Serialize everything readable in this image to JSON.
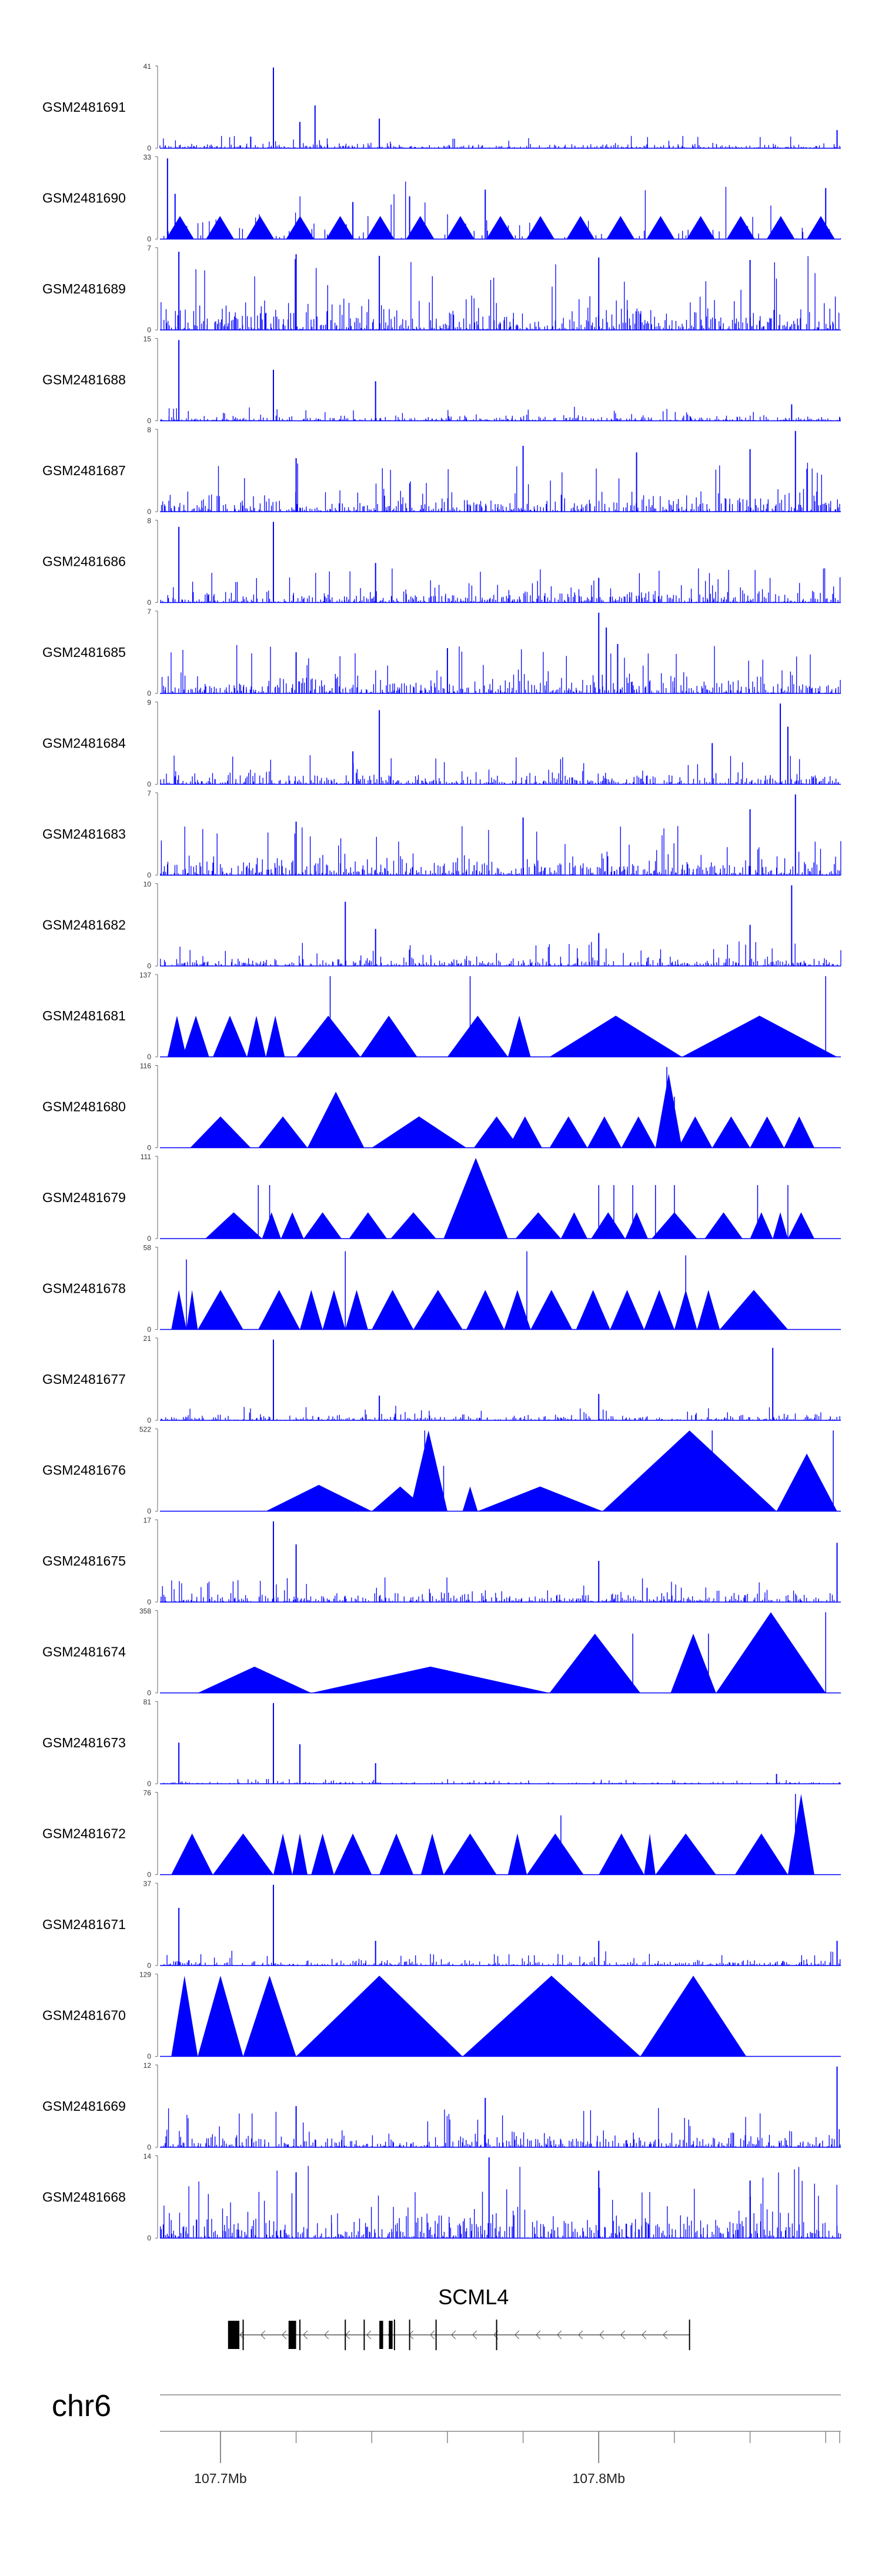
{
  "colors": {
    "signal": "#0000ff",
    "axis": "#666666",
    "gene": "#000000",
    "text": "#000000"
  },
  "chart_data": {
    "type": "area",
    "title": "",
    "xlabel": "chr6",
    "chromosome": "chr6",
    "xlim": [
      107.684,
      107.864
    ],
    "x_ticks": [
      {
        "value": 107.7,
        "label": "107.7Mb"
      },
      {
        "value": 107.8,
        "label": "107.8Mb"
      }
    ],
    "x_minor_ticks": [
      107.72,
      107.74,
      107.76,
      107.78,
      107.82,
      107.84,
      107.86
    ],
    "series": [
      {
        "name": "GSM2481691",
        "ymax": 41,
        "ymin": 0,
        "style": "dense",
        "seed": 91,
        "base": 0.05,
        "peaks": [
          [
            107.714,
            0.98
          ],
          [
            107.725,
            0.52
          ],
          [
            107.721,
            0.32
          ],
          [
            107.742,
            0.36
          ],
          [
            107.708,
            0.14
          ],
          [
            107.863,
            0.22
          ]
        ]
      },
      {
        "name": "GSM2481690",
        "ymax": 33,
        "ymin": 0,
        "style": "hybrid",
        "seed": 90,
        "base": 0.28,
        "tri_count": 17,
        "peaks": [
          [
            107.686,
            0.98
          ],
          [
            107.688,
            0.55
          ],
          [
            107.735,
            0.45
          ],
          [
            107.75,
            0.52
          ],
          [
            107.77,
            0.6
          ],
          [
            107.86,
            0.62
          ]
        ]
      },
      {
        "name": "GSM2481689",
        "ymax": 7,
        "ymin": 0,
        "style": "dense",
        "seed": 89,
        "base": 0.3,
        "peaks": [
          [
            107.689,
            0.95
          ],
          [
            107.72,
            0.92
          ],
          [
            107.742,
            0.9
          ],
          [
            107.8,
            0.88
          ],
          [
            107.84,
            0.85
          ]
        ]
      },
      {
        "name": "GSM2481688",
        "ymax": 15,
        "ymin": 0,
        "style": "dense",
        "seed": 88,
        "base": 0.06,
        "peaks": [
          [
            107.689,
            0.98
          ],
          [
            107.714,
            0.62
          ],
          [
            107.741,
            0.48
          ],
          [
            107.851,
            0.2
          ]
        ]
      },
      {
        "name": "GSM2481687",
        "ymax": 8,
        "ymin": 0,
        "style": "dense",
        "seed": 87,
        "base": 0.2,
        "peaks": [
          [
            107.852,
            0.98
          ],
          [
            107.78,
            0.8
          ],
          [
            107.81,
            0.72
          ],
          [
            107.84,
            0.76
          ],
          [
            107.72,
            0.65
          ]
        ]
      },
      {
        "name": "GSM2481686",
        "ymax": 8,
        "ymin": 0,
        "style": "dense",
        "seed": 86,
        "base": 0.14,
        "peaks": [
          [
            107.689,
            0.92
          ],
          [
            107.714,
            0.98
          ],
          [
            107.741,
            0.48
          ],
          [
            107.8,
            0.3
          ]
        ]
      },
      {
        "name": "GSM2481685",
        "ymax": 7,
        "ymin": 0,
        "style": "dense",
        "seed": 85,
        "base": 0.2,
        "peaks": [
          [
            107.8,
            0.98
          ],
          [
            107.802,
            0.8
          ],
          [
            107.805,
            0.6
          ],
          [
            107.76,
            0.55
          ],
          [
            107.72,
            0.5
          ]
        ]
      },
      {
        "name": "GSM2481684",
        "ymax": 9,
        "ymin": 0,
        "style": "dense",
        "seed": 84,
        "base": 0.12,
        "peaks": [
          [
            107.742,
            0.9
          ],
          [
            107.848,
            0.98
          ],
          [
            107.85,
            0.7
          ],
          [
            107.735,
            0.4
          ],
          [
            107.83,
            0.5
          ]
        ]
      },
      {
        "name": "GSM2481683",
        "ymax": 7,
        "ymin": 0,
        "style": "dense",
        "seed": 83,
        "base": 0.2,
        "peaks": [
          [
            107.852,
            0.98
          ],
          [
            107.84,
            0.8
          ],
          [
            107.78,
            0.7
          ],
          [
            107.72,
            0.65
          ]
        ]
      },
      {
        "name": "GSM2481682",
        "ymax": 10,
        "ymin": 0,
        "style": "dense",
        "seed": 82,
        "base": 0.1,
        "peaks": [
          [
            107.851,
            0.98
          ],
          [
            107.733,
            0.78
          ],
          [
            107.741,
            0.45
          ],
          [
            107.8,
            0.4
          ],
          [
            107.84,
            0.5
          ]
        ]
      },
      {
        "name": "GSM2481681",
        "ymax": 137,
        "ymin": 0,
        "style": "tri",
        "spikes": [
          [
            107.729,
            0.98
          ],
          [
            107.766,
            0.98
          ],
          [
            107.86,
            0.98
          ]
        ],
        "tris": [
          [
            107.686,
            107.691,
            0.5
          ],
          [
            107.69,
            107.697,
            0.5
          ],
          [
            107.698,
            107.707,
            0.5
          ],
          [
            107.707,
            107.712,
            0.5
          ],
          [
            107.712,
            107.717,
            0.5
          ],
          [
            107.72,
            107.737,
            0.5
          ],
          [
            107.737,
            107.752,
            0.5
          ],
          [
            107.76,
            107.776,
            0.5
          ],
          [
            107.776,
            107.782,
            0.5
          ],
          [
            107.787,
            107.822,
            0.5
          ],
          [
            107.822,
            107.863,
            0.5
          ]
        ]
      },
      {
        "name": "GSM2481680",
        "ymax": 116,
        "ymin": 0,
        "style": "tri",
        "spikes": [
          [
            107.818,
            0.98
          ],
          [
            107.82,
            0.62
          ]
        ],
        "tris": [
          [
            107.692,
            107.708,
            0.38
          ],
          [
            107.71,
            107.723,
            0.38
          ],
          [
            107.723,
            107.738,
            0.68
          ],
          [
            107.74,
            107.765,
            0.38
          ],
          [
            107.767,
            107.779,
            0.38
          ],
          [
            107.776,
            107.785,
            0.38
          ],
          [
            107.787,
            107.797,
            0.38
          ],
          [
            107.797,
            107.806,
            0.38
          ],
          [
            107.806,
            107.815,
            0.38
          ],
          [
            107.815,
            107.822,
            0.9
          ],
          [
            107.821,
            107.83,
            0.38
          ],
          [
            107.83,
            107.84,
            0.38
          ],
          [
            107.84,
            107.849,
            0.38
          ],
          [
            107.849,
            107.857,
            0.38
          ]
        ]
      },
      {
        "name": "GSM2481679",
        "ymax": 111,
        "ymin": 0,
        "style": "tri",
        "spikes": [
          [
            107.71,
            0.65
          ],
          [
            107.713,
            0.65
          ],
          [
            107.8,
            0.65
          ],
          [
            107.804,
            0.65
          ],
          [
            107.809,
            0.65
          ],
          [
            107.815,
            0.65
          ],
          [
            107.82,
            0.65
          ],
          [
            107.842,
            0.65
          ],
          [
            107.85,
            0.65
          ]
        ],
        "tris": [
          [
            107.696,
            107.711,
            0.32
          ],
          [
            107.711,
            107.716,
            0.32
          ],
          [
            107.716,
            107.722,
            0.32
          ],
          [
            107.722,
            107.732,
            0.32
          ],
          [
            107.734,
            107.744,
            0.32
          ],
          [
            107.745,
            107.757,
            0.32
          ],
          [
            107.759,
            107.776,
            0.98
          ],
          [
            107.778,
            107.79,
            0.32
          ],
          [
            107.79,
            107.797,
            0.32
          ],
          [
            107.798,
            107.807,
            0.32
          ],
          [
            107.807,
            107.813,
            0.32
          ],
          [
            107.814,
            107.826,
            0.32
          ],
          [
            107.828,
            107.838,
            0.32
          ],
          [
            107.84,
            107.846,
            0.32
          ],
          [
            107.846,
            107.85,
            0.32
          ],
          [
            107.85,
            107.857,
            0.32
          ]
        ]
      },
      {
        "name": "GSM2481678",
        "ymax": 58,
        "ymin": 0,
        "style": "tri",
        "spikes": [
          [
            107.691,
            0.85
          ],
          [
            107.733,
            0.95
          ],
          [
            107.781,
            0.95
          ],
          [
            107.823,
            0.9
          ]
        ],
        "tris": [
          [
            107.687,
            107.691,
            0.48
          ],
          [
            107.691,
            107.694,
            0.48
          ],
          [
            107.694,
            107.706,
            0.48
          ],
          [
            107.71,
            107.721,
            0.48
          ],
          [
            107.721,
            107.727,
            0.48
          ],
          [
            107.727,
            107.733,
            0.48
          ],
          [
            107.733,
            107.739,
            0.48
          ],
          [
            107.74,
            107.751,
            0.48
          ],
          [
            107.751,
            107.764,
            0.48
          ],
          [
            107.765,
            107.775,
            0.48
          ],
          [
            107.775,
            107.782,
            0.48
          ],
          [
            107.782,
            107.793,
            0.48
          ],
          [
            107.794,
            107.803,
            0.48
          ],
          [
            107.803,
            107.812,
            0.48
          ],
          [
            107.812,
            107.82,
            0.48
          ],
          [
            107.82,
            107.826,
            0.48
          ],
          [
            107.826,
            107.832,
            0.48
          ],
          [
            107.832,
            107.85,
            0.48
          ]
        ]
      },
      {
        "name": "GSM2481677",
        "ymax": 21,
        "ymin": 0,
        "style": "dense",
        "seed": 77,
        "base": 0.06,
        "peaks": [
          [
            107.714,
            0.98
          ],
          [
            107.846,
            0.88
          ],
          [
            107.742,
            0.3
          ],
          [
            107.8,
            0.32
          ]
        ]
      },
      {
        "name": "GSM2481676",
        "ymax": 522,
        "ymin": 0,
        "style": "tri",
        "spikes": [
          [
            107.754,
            0.98
          ],
          [
            107.759,
            0.55
          ],
          [
            107.83,
            0.98
          ],
          [
            107.862,
            0.98
          ]
        ],
        "tris": [
          [
            107.712,
            107.74,
            0.32
          ],
          [
            107.74,
            107.755,
            0.3
          ],
          [
            107.75,
            107.76,
            0.98
          ],
          [
            107.764,
            107.768,
            0.3
          ],
          [
            107.768,
            107.801,
            0.3
          ],
          [
            107.801,
            107.847,
            0.98
          ],
          [
            107.847,
            107.863,
            0.7
          ]
        ]
      },
      {
        "name": "GSM2481675",
        "ymax": 17,
        "ymin": 0,
        "style": "dense",
        "seed": 75,
        "base": 0.1,
        "peaks": [
          [
            107.714,
            0.98
          ],
          [
            107.72,
            0.7
          ],
          [
            107.8,
            0.5
          ],
          [
            107.863,
            0.72
          ]
        ]
      },
      {
        "name": "GSM2481674",
        "ymax": 358,
        "ymin": 0,
        "style": "tri",
        "spikes": [
          [
            107.809,
            0.72
          ],
          [
            107.829,
            0.72
          ],
          [
            107.86,
            0.98
          ]
        ],
        "tris": [
          [
            107.694,
            107.724,
            0.32
          ],
          [
            107.724,
            107.787,
            0.32
          ],
          [
            107.787,
            107.811,
            0.72
          ],
          [
            107.819,
            107.831,
            0.72
          ],
          [
            107.831,
            107.86,
            0.98
          ]
        ]
      },
      {
        "name": "GSM2481673",
        "ymax": 81,
        "ymin": 0,
        "style": "dense",
        "seed": 73,
        "base": 0.02,
        "peaks": [
          [
            107.714,
            0.98
          ],
          [
            107.689,
            0.5
          ],
          [
            107.721,
            0.48
          ],
          [
            107.741,
            0.25
          ],
          [
            107.847,
            0.12
          ]
        ]
      },
      {
        "name": "GSM2481672",
        "ymax": 76,
        "ymin": 0,
        "style": "tri",
        "spikes": [
          [
            107.79,
            0.72
          ],
          [
            107.852,
            0.98
          ]
        ],
        "tris": [
          [
            107.687,
            107.698,
            0.5
          ],
          [
            107.698,
            107.714,
            0.5
          ],
          [
            107.714,
            107.719,
            0.5
          ],
          [
            107.719,
            107.723,
            0.5
          ],
          [
            107.724,
            107.73,
            0.5
          ],
          [
            107.73,
            107.74,
            0.5
          ],
          [
            107.742,
            107.751,
            0.5
          ],
          [
            107.753,
            107.759,
            0.5
          ],
          [
            107.759,
            107.773,
            0.5
          ],
          [
            107.776,
            107.781,
            0.5
          ],
          [
            107.781,
            107.796,
            0.5
          ],
          [
            107.8,
            107.812,
            0.5
          ],
          [
            107.812,
            107.815,
            0.5
          ],
          [
            107.815,
            107.831,
            0.5
          ],
          [
            107.836,
            107.85,
            0.5
          ],
          [
            107.85,
            107.857,
            0.98
          ]
        ]
      },
      {
        "name": "GSM2481671",
        "ymax": 37,
        "ymin": 0,
        "style": "dense",
        "seed": 71,
        "base": 0.06,
        "peaks": [
          [
            107.714,
            0.98
          ],
          [
            107.689,
            0.7
          ],
          [
            107.741,
            0.3
          ],
          [
            107.8,
            0.3
          ],
          [
            107.863,
            0.3
          ]
        ]
      },
      {
        "name": "GSM2481670",
        "ymax": 129,
        "ymin": 0,
        "style": "tri",
        "tris": [
          [
            107.687,
            107.694,
            0.98
          ],
          [
            107.694,
            107.706,
            0.98
          ],
          [
            107.706,
            107.72,
            0.98
          ],
          [
            107.72,
            107.764,
            0.98
          ],
          [
            107.764,
            107.811,
            0.98
          ],
          [
            107.811,
            107.839,
            0.98
          ]
        ]
      },
      {
        "name": "GSM2481669",
        "ymax": 12,
        "ymin": 0,
        "style": "dense",
        "seed": 69,
        "base": 0.16,
        "peaks": [
          [
            107.863,
            0.98
          ],
          [
            107.77,
            0.6
          ],
          [
            107.72,
            0.5
          ]
        ]
      },
      {
        "name": "GSM2481668",
        "ymax": 14,
        "ymin": 0,
        "style": "dense",
        "seed": 68,
        "base": 0.3,
        "peaks": [
          [
            107.771,
            0.98
          ],
          [
            107.72,
            0.8
          ],
          [
            107.8,
            0.82
          ],
          [
            107.84,
            0.7
          ]
        ]
      }
    ],
    "gene": {
      "name": "SCML4",
      "start": 107.702,
      "end": 107.824,
      "strand": "-",
      "exons": [
        [
          107.702,
          107.705
        ],
        [
          107.718,
          107.72
        ],
        [
          107.742,
          107.743
        ],
        [
          107.7445,
          107.7455
        ]
      ],
      "thin_marks": [
        107.706,
        107.721,
        107.733,
        107.738,
        107.746,
        107.75,
        107.757,
        107.773,
        107.824
      ]
    }
  }
}
